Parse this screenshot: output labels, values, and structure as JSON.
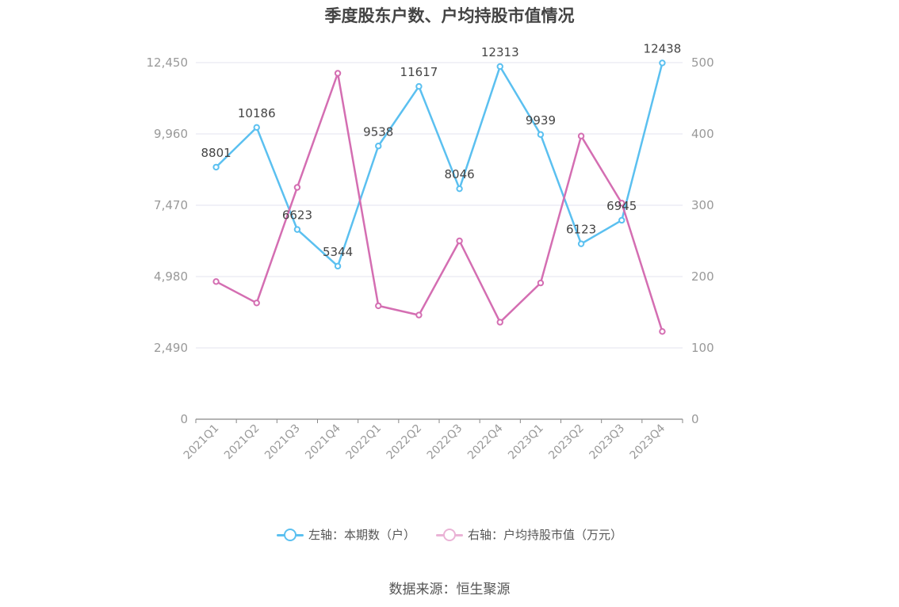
{
  "title": "季度股东户数、户均持股市值情况",
  "source": "数据来源：恒生聚源",
  "legend": {
    "left_label": "左轴：本期数（户）",
    "right_label": "右轴：户均持股市值（万元）"
  },
  "colors": {
    "left_series": "#5bc0f0",
    "right_series": "#d46eb2",
    "grid": "#e3e3ef",
    "axis_text": "#999999",
    "label_text": "#444444"
  },
  "chart_data": {
    "type": "line",
    "categories": [
      "2021Q1",
      "2021Q2",
      "2021Q3",
      "2021Q4",
      "2022Q1",
      "2022Q2",
      "2022Q3",
      "2022Q4",
      "2023Q1",
      "2023Q2",
      "2023Q3",
      "2023Q4"
    ],
    "series": [
      {
        "name": "左轴：本期数（户）",
        "axis": "left",
        "values": [
          8801,
          10186,
          6623,
          5344,
          9538,
          11617,
          8046,
          12313,
          9939,
          6123,
          6945,
          12438
        ],
        "data_labels": [
          "8801",
          "10186",
          "6623",
          "5344",
          "9538",
          "11617",
          "8046",
          "12313",
          "9939",
          "6123",
          "6945",
          "12438"
        ]
      },
      {
        "name": "右轴：户均持股市值（万元）",
        "axis": "right",
        "values": [
          193,
          163,
          325,
          485,
          159,
          146,
          250,
          136,
          191,
          397,
          303,
          123
        ]
      }
    ],
    "left_axis": {
      "ylim": [
        0,
        12450
      ],
      "ticks": [
        "0",
        "2,490",
        "4,980",
        "7,470",
        "9,960",
        "12,450"
      ]
    },
    "right_axis": {
      "ylim": [
        0,
        500
      ],
      "ticks": [
        "0",
        "100",
        "200",
        "300",
        "400",
        "500"
      ]
    },
    "grid": true,
    "legend_position": "bottom"
  }
}
